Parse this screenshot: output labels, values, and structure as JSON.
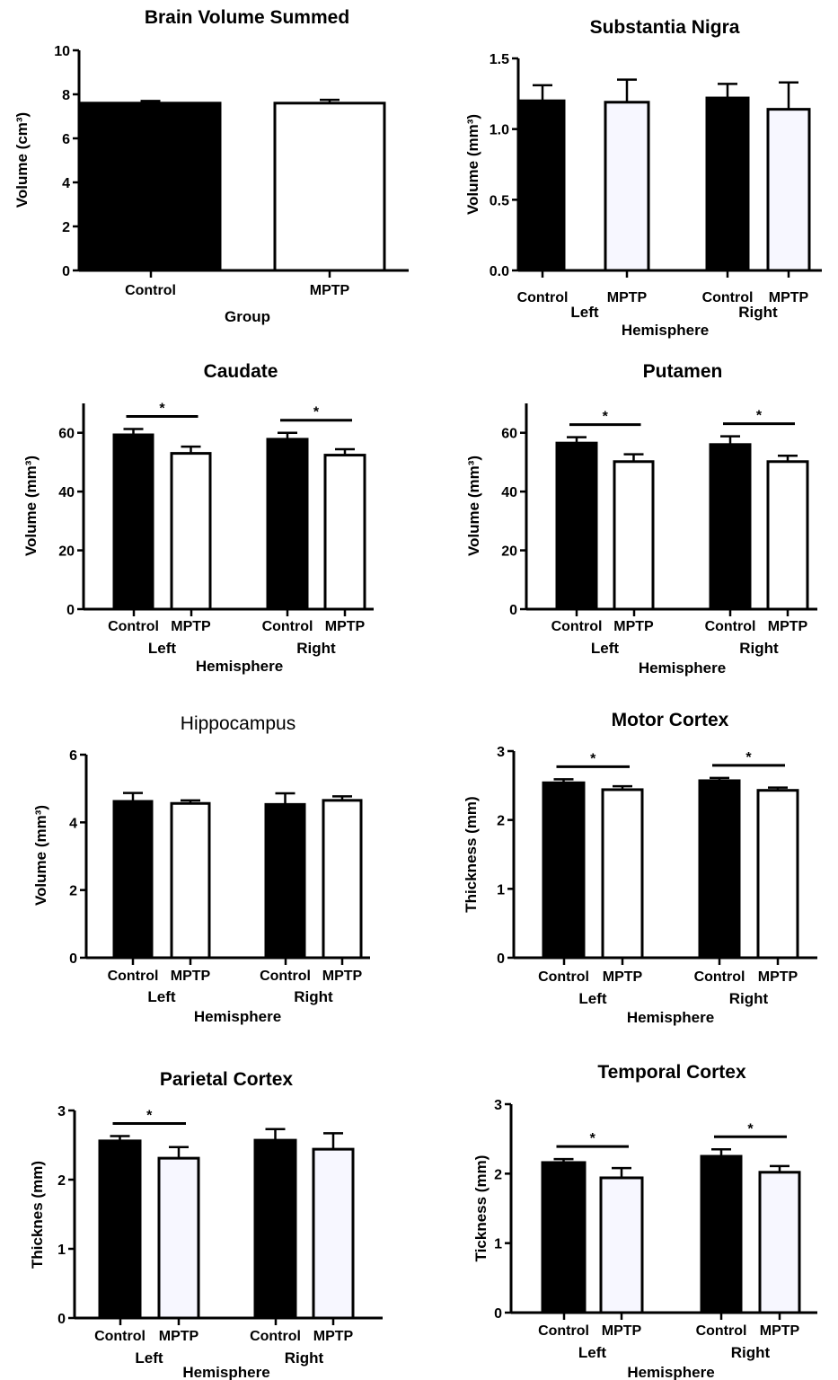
{
  "figure": {
    "colors": {
      "control": "#000000",
      "mptp": "#ffffff",
      "mptp_light": "#f7f7ff",
      "axis": "#000000"
    }
  },
  "chart_data": [
    {
      "type": "bar",
      "title": "Brain Volume Summed",
      "xlabel": "Group",
      "ylabel": "Volume (cm³)",
      "ylim": [
        0,
        10
      ],
      "yticks": [
        "0",
        "2",
        "4",
        "6",
        "8",
        "10"
      ],
      "groups": [],
      "categories": [
        "Control",
        "MPTP"
      ],
      "values": [
        7.6,
        7.6
      ],
      "errors": [
        0.1,
        0.15
      ],
      "significance": [],
      "grid": false,
      "legend": "none"
    },
    {
      "type": "bar",
      "title": "Substantia Nigra",
      "xlabel": "Hemisphere",
      "ylabel": "Volume (mm³)",
      "ylim": [
        0,
        1.5
      ],
      "yticks": [
        "0.0",
        "0.5",
        "1.0",
        "1.5"
      ],
      "groups": [
        "Left",
        "Right"
      ],
      "categories": [
        "Control",
        "MPTP",
        "Control",
        "MPTP"
      ],
      "values": [
        1.2,
        1.19,
        1.22,
        1.14
      ],
      "errors": [
        0.11,
        0.16,
        0.1,
        0.19
      ],
      "significance": [],
      "grid": false,
      "legend": "none"
    },
    {
      "type": "bar",
      "title": "Caudate",
      "xlabel": "Hemisphere",
      "ylabel": "Volume (mm³)",
      "ylim": [
        0,
        70
      ],
      "yticks": [
        "0",
        "20",
        "40",
        "60"
      ],
      "groups": [
        "Left",
        "Right"
      ],
      "categories": [
        "Control",
        "MPTP",
        "Control",
        "MPTP"
      ],
      "values": [
        59.3,
        53,
        57.8,
        52.4
      ],
      "errors": [
        2,
        2.3,
        2.2,
        2
      ],
      "significance": [
        {
          "pair": "left",
          "label": "*"
        },
        {
          "pair": "right",
          "label": "*"
        }
      ],
      "grid": false,
      "legend": "none"
    },
    {
      "type": "bar",
      "title": "Putamen",
      "xlabel": "Hemisphere",
      "ylabel": "Volume (mm³)",
      "ylim": [
        0,
        70
      ],
      "yticks": [
        "0",
        "20",
        "40",
        "60"
      ],
      "groups": [
        "Left",
        "Right"
      ],
      "categories": [
        "Control",
        "MPTP",
        "Control",
        "MPTP"
      ],
      "values": [
        56.5,
        50.2,
        56,
        50.2
      ],
      "errors": [
        2,
        2.5,
        2.8,
        2
      ],
      "significance": [
        {
          "pair": "left",
          "label": "*"
        },
        {
          "pair": "right",
          "label": "*"
        }
      ],
      "grid": false,
      "legend": "none"
    },
    {
      "type": "bar",
      "title": "Hippocampus",
      "xlabel": "Hemisphere",
      "ylabel": "Volume (mm³)",
      "ylim": [
        0,
        6
      ],
      "yticks": [
        "0",
        "2",
        "4",
        "6"
      ],
      "groups": [
        "Left",
        "Right"
      ],
      "categories": [
        "Control",
        "MPTP",
        "Control",
        "MPTP"
      ],
      "values": [
        4.62,
        4.56,
        4.53,
        4.65
      ],
      "errors": [
        0.25,
        0.09,
        0.33,
        0.12
      ],
      "significance": [],
      "grid": false,
      "legend": "none"
    },
    {
      "type": "bar",
      "title": "Motor Cortex",
      "xlabel": "Hemisphere",
      "ylabel": "Thickness (mm)",
      "ylim": [
        0,
        3
      ],
      "yticks": [
        "0",
        "1",
        "2",
        "3"
      ],
      "groups": [
        "Left",
        "Right"
      ],
      "categories": [
        "Control",
        "MPTP",
        "Control",
        "MPTP"
      ],
      "values": [
        2.54,
        2.44,
        2.57,
        2.43
      ],
      "errors": [
        0.05,
        0.05,
        0.04,
        0.04
      ],
      "significance": [
        {
          "pair": "left",
          "label": "*"
        },
        {
          "pair": "right",
          "label": "*"
        }
      ],
      "grid": false,
      "legend": "none"
    },
    {
      "type": "bar",
      "title": "Parietal Cortex",
      "xlabel": "Hemisphere",
      "ylabel": "Thicknes (mm)",
      "ylim": [
        0,
        3
      ],
      "yticks": [
        "0",
        "1",
        "2",
        "3"
      ],
      "groups": [
        "Left",
        "Right"
      ],
      "categories": [
        "Control",
        "MPTP",
        "Control",
        "MPTP"
      ],
      "values": [
        2.56,
        2.31,
        2.57,
        2.44
      ],
      "errors": [
        0.07,
        0.16,
        0.16,
        0.23
      ],
      "significance": [
        {
          "pair": "left",
          "label": "*"
        }
      ],
      "grid": false,
      "legend": "none"
    },
    {
      "type": "bar",
      "title": "Temporal Cortex",
      "xlabel": "Hemisphere",
      "ylabel": "Tickness (mm)",
      "ylim": [
        0,
        3
      ],
      "yticks": [
        "0",
        "1",
        "2",
        "3"
      ],
      "groups": [
        "Left",
        "Right"
      ],
      "categories": [
        "Control",
        "MPTP",
        "Control",
        "MPTP"
      ],
      "values": [
        2.16,
        1.94,
        2.25,
        2.02
      ],
      "errors": [
        0.05,
        0.14,
        0.1,
        0.09
      ],
      "significance": [
        {
          "pair": "left",
          "label": "*"
        },
        {
          "pair": "right",
          "label": "*"
        }
      ],
      "grid": false,
      "legend": "none"
    }
  ]
}
